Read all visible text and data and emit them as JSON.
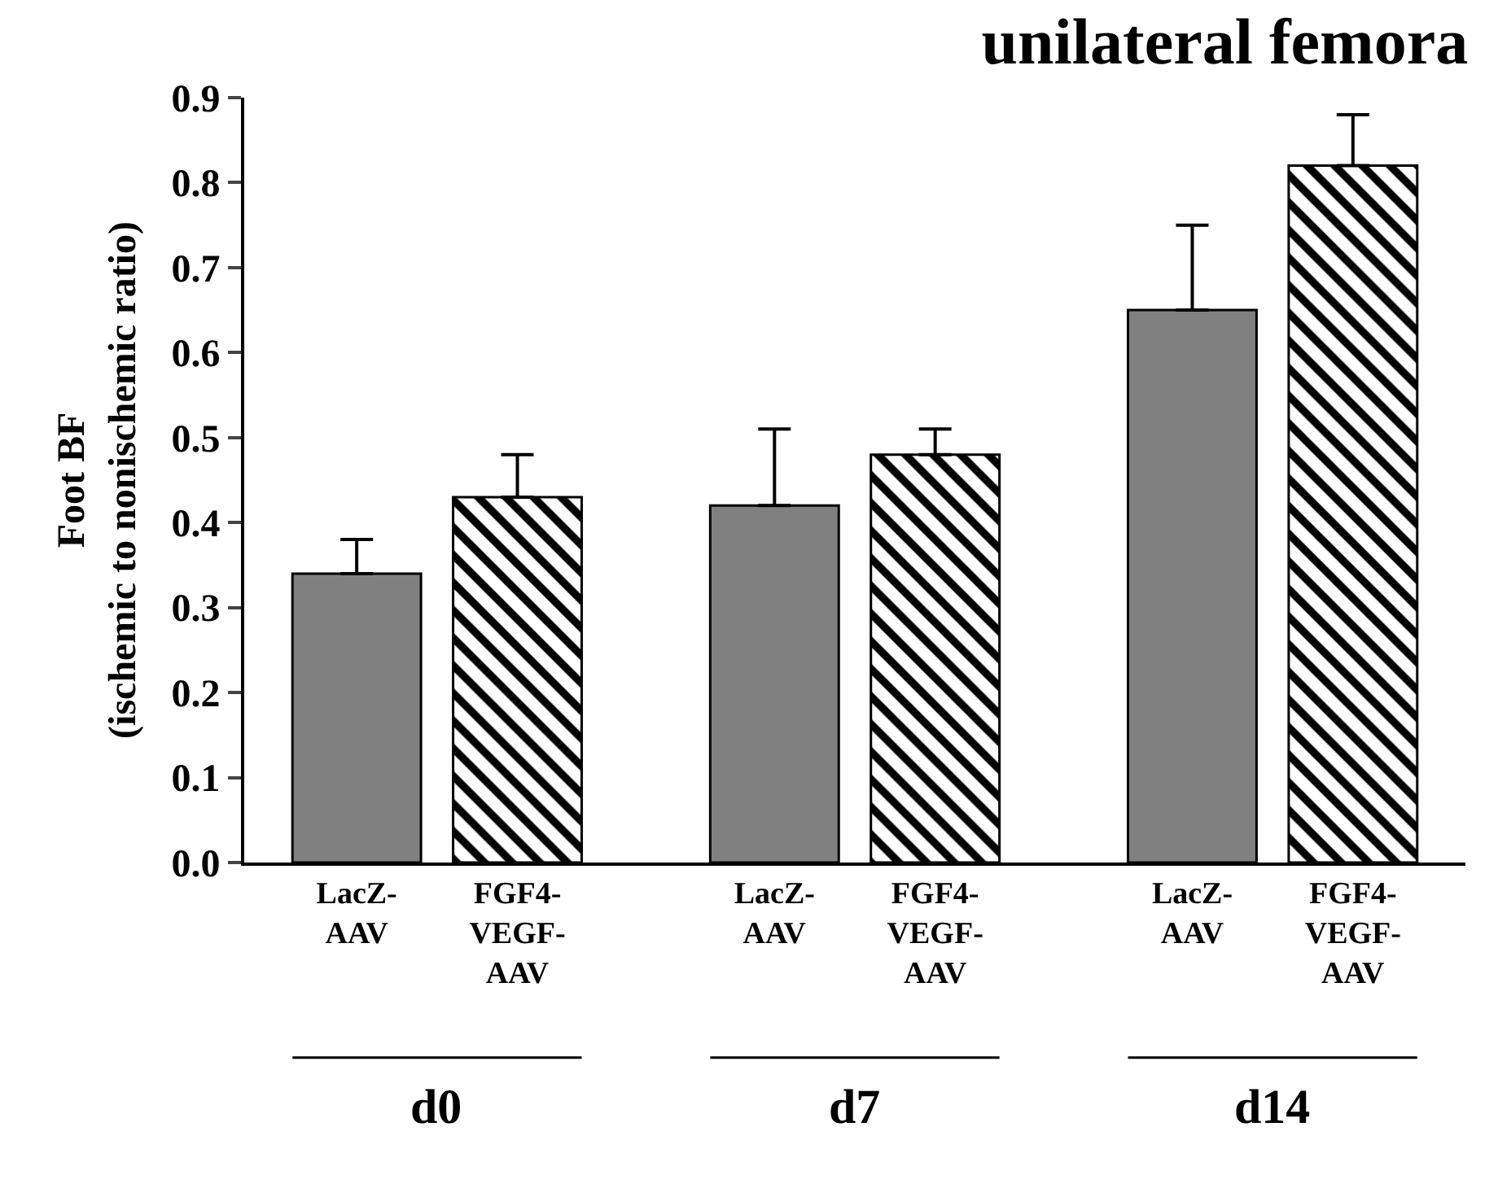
{
  "chart_data": {
    "type": "bar",
    "title": "unilateral femora",
    "ylabel": "Foot BF\n(ischemic to nonischemic ratio)",
    "categories": [
      "LacZ-\nAAV",
      "FGF4-\nVEGF-\nAAV",
      "LacZ-\nAAV",
      "FGF4-\nVEGF-\nAAV",
      "LacZ-\nAAV",
      "FGF4-\nVEGF-\nAAV"
    ],
    "series": [
      {
        "color": "#808080",
        "values": [
          0.34,
          null,
          0.42,
          null,
          0.65,
          null
        ],
        "errors": [
          0.04,
          null,
          0.09,
          null,
          0.1,
          null
        ]
      },
      {
        "color": "#000000",
        "values": [
          null,
          0.43,
          null,
          0.48,
          null,
          0.82
        ],
        "errors": [
          null,
          0.05,
          null,
          0.03,
          null,
          0.06
        ]
      }
    ],
    "annotations": [
      "d0",
      "d7",
      "d14"
    ],
    "yticks": [
      {
        "value": 0,
        "label": "0.0"
      },
      0.1,
      0.2,
      0.3,
      0.4,
      0.5,
      0.6,
      0.7,
      0.8,
      0.9
    ],
    "ylim": [
      0,
      0.9
    ]
  }
}
